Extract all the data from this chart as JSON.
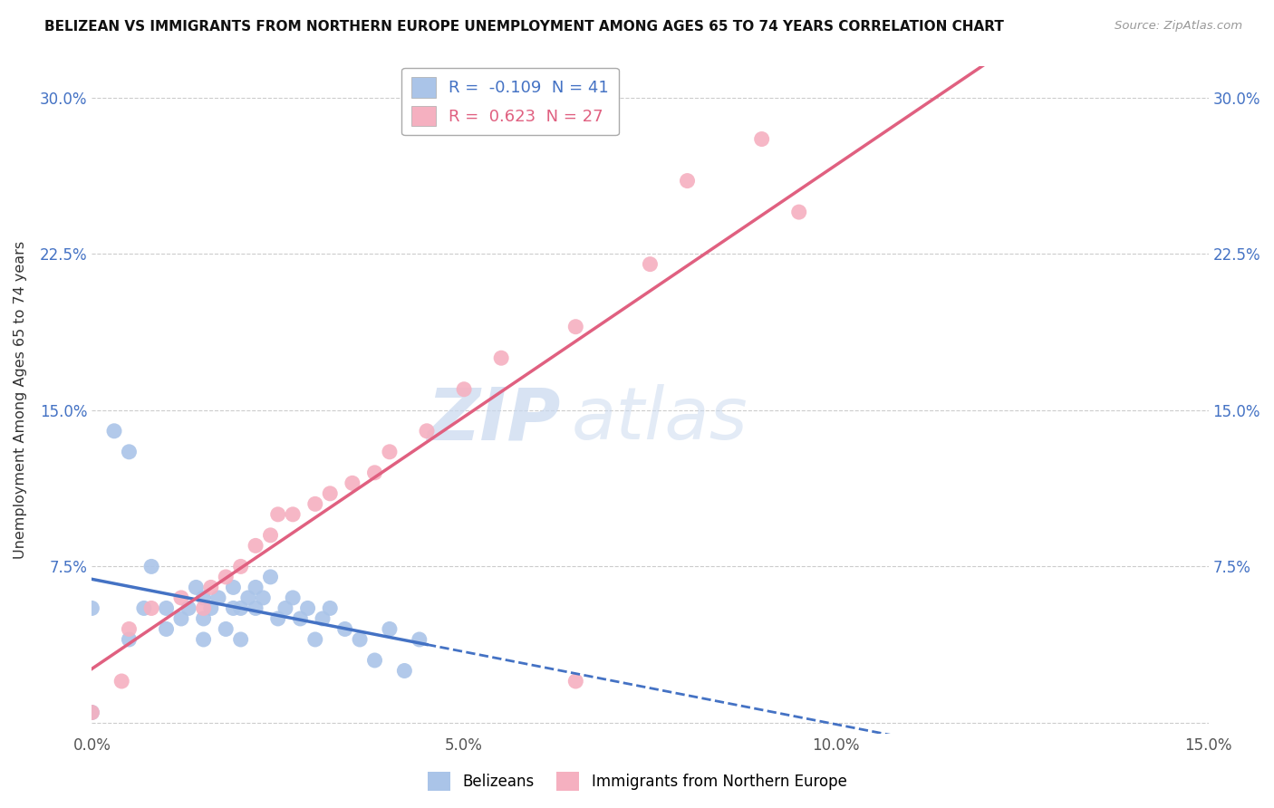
{
  "title": "BELIZEAN VS IMMIGRANTS FROM NORTHERN EUROPE UNEMPLOYMENT AMONG AGES 65 TO 74 YEARS CORRELATION CHART",
  "source": "Source: ZipAtlas.com",
  "ylabel": "Unemployment Among Ages 65 to 74 years",
  "xlim": [
    0.0,
    0.15
  ],
  "ylim": [
    -0.005,
    0.315
  ],
  "xticks": [
    0.0,
    0.025,
    0.05,
    0.075,
    0.1,
    0.125,
    0.15
  ],
  "xtick_labels": [
    "0.0%",
    "",
    "5.0%",
    "",
    "10.0%",
    "",
    "15.0%"
  ],
  "yticks": [
    0.0,
    0.075,
    0.15,
    0.225,
    0.3
  ],
  "ytick_labels": [
    "",
    "7.5%",
    "15.0%",
    "22.5%",
    "30.0%"
  ],
  "belizean_R": -0.109,
  "belizean_N": 41,
  "immigrant_R": 0.623,
  "immigrant_N": 27,
  "belizean_color": "#aac4e8",
  "immigrant_color": "#f5b0c0",
  "belizean_line_color": "#4472c4",
  "immigrant_line_color": "#e06080",
  "legend_labels": [
    "Belizeans",
    "Immigrants from Northern Europe"
  ],
  "belizean_x": [
    0.0,
    0.003,
    0.005,
    0.005,
    0.007,
    0.008,
    0.01,
    0.01,
    0.012,
    0.013,
    0.014,
    0.015,
    0.015,
    0.015,
    0.016,
    0.017,
    0.018,
    0.019,
    0.019,
    0.02,
    0.02,
    0.021,
    0.022,
    0.022,
    0.023,
    0.024,
    0.025,
    0.026,
    0.027,
    0.028,
    0.029,
    0.03,
    0.031,
    0.032,
    0.034,
    0.036,
    0.038,
    0.04,
    0.042,
    0.044,
    0.0
  ],
  "belizean_y": [
    0.055,
    0.14,
    0.04,
    0.13,
    0.055,
    0.075,
    0.045,
    0.055,
    0.05,
    0.055,
    0.065,
    0.04,
    0.05,
    0.06,
    0.055,
    0.06,
    0.045,
    0.055,
    0.065,
    0.04,
    0.055,
    0.06,
    0.055,
    0.065,
    0.06,
    0.07,
    0.05,
    0.055,
    0.06,
    0.05,
    0.055,
    0.04,
    0.05,
    0.055,
    0.045,
    0.04,
    0.03,
    0.045,
    0.025,
    0.04,
    0.005
  ],
  "immigrant_x": [
    0.0,
    0.004,
    0.005,
    0.008,
    0.012,
    0.015,
    0.016,
    0.018,
    0.02,
    0.022,
    0.024,
    0.025,
    0.027,
    0.03,
    0.032,
    0.035,
    0.038,
    0.04,
    0.045,
    0.05,
    0.055,
    0.065,
    0.075,
    0.08,
    0.09,
    0.095,
    0.065
  ],
  "immigrant_y": [
    0.005,
    0.02,
    0.045,
    0.055,
    0.06,
    0.055,
    0.065,
    0.07,
    0.075,
    0.085,
    0.09,
    0.1,
    0.1,
    0.105,
    0.11,
    0.115,
    0.12,
    0.13,
    0.14,
    0.16,
    0.175,
    0.19,
    0.22,
    0.26,
    0.28,
    0.245,
    0.02
  ]
}
